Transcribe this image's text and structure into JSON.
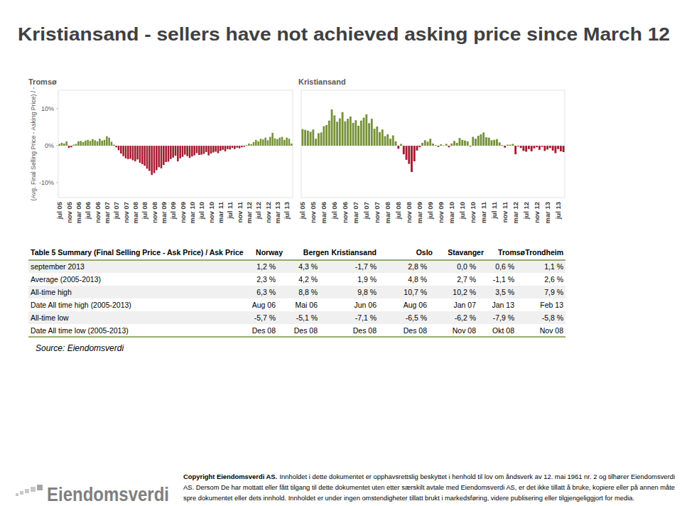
{
  "title": "Kristiansand - sellers have not achieved asking price since March 12",
  "chart_data": [
    {
      "type": "bar",
      "title": "Tromsø",
      "ylabel": "(Avg. Final Selling Price - Asking Price) / -",
      "categories": [
        "jul 05",
        null,
        null,
        null,
        "nov 05",
        null,
        null,
        null,
        "mar 06",
        null,
        null,
        null,
        "jul 06",
        null,
        null,
        null,
        "nov 06",
        null,
        null,
        null,
        "mar 07",
        null,
        null,
        null,
        "jul 07",
        null,
        null,
        null,
        "nov 07",
        null,
        null,
        null,
        "mar 08",
        null,
        null,
        null,
        "jul 08",
        null,
        null,
        null,
        "nov 08",
        null,
        null,
        null,
        "mar 09",
        null,
        null,
        null,
        "jul 09",
        null,
        null,
        null,
        "nov 09",
        null,
        null,
        null,
        "mar 10",
        null,
        null,
        null,
        "jul 10",
        null,
        null,
        null,
        "nov 10",
        null,
        null,
        null,
        "mar 11",
        null,
        null,
        null,
        "jul 11",
        null,
        null,
        null,
        "nov 11",
        null,
        null,
        null,
        "mar 12",
        null,
        null,
        null,
        "jul 12",
        null,
        null,
        null,
        "nov 12",
        null,
        null,
        null,
        "mar 13",
        null,
        null,
        null,
        "jul 13",
        null,
        null
      ],
      "values": [
        0.5,
        0.8,
        0.6,
        1.2,
        -0.6,
        -0.4,
        0.3,
        0.5,
        1.2,
        1.3,
        1.0,
        1.4,
        1.6,
        1.3,
        1.8,
        1.5,
        1.2,
        1.9,
        1.4,
        1.6,
        2.6,
        2.2,
        1.1,
        0.3,
        -0.4,
        -1.2,
        -2.1,
        -2.8,
        -3.4,
        -3.6,
        -3.5,
        -3.9,
        -4.2,
        -3.7,
        -4.6,
        -5.0,
        -5.4,
        -6.2,
        -6.8,
        -7.9,
        -7.4,
        -6.6,
        -5.8,
        -6.1,
        -5.2,
        -4.4,
        -4.3,
        -3.6,
        -3.2,
        -2.7,
        -4.2,
        -3.4,
        -3.0,
        -2.4,
        -2.8,
        -3.3,
        -2.9,
        -2.6,
        -2.0,
        -2.5,
        -2.4,
        -2.2,
        -1.7,
        -2.6,
        -2.1,
        -1.8,
        -1.6,
        -2.0,
        -1.4,
        -1.1,
        -1.5,
        -0.9,
        -1.0,
        -0.6,
        -0.9,
        -0.5,
        -0.7,
        -0.4,
        -0.3,
        0.2,
        0.6,
        0.4,
        1.0,
        1.6,
        1.2,
        1.9,
        1.7,
        2.2,
        1.5,
        2.4,
        3.5,
        2.0,
        1.8,
        2.2,
        2.4,
        1.6,
        2.2,
        1.9,
        0.6
      ],
      "colors": [
        "#76923c",
        "#76923c",
        "#76923c",
        "#76923c",
        "#a6192e",
        "#a6192e",
        "#76923c",
        "#76923c",
        "#76923c",
        "#76923c",
        "#76923c",
        "#76923c",
        "#76923c",
        "#76923c",
        "#76923c",
        "#76923c",
        "#76923c",
        "#76923c",
        "#76923c",
        "#76923c",
        "#76923c",
        "#76923c",
        "#76923c",
        "#76923c",
        "#a6192e",
        "#a6192e",
        "#a6192e",
        "#a6192e",
        "#a6192e",
        "#a6192e",
        "#a6192e",
        "#a6192e",
        "#a6192e",
        "#a6192e",
        "#a6192e",
        "#a6192e",
        "#a6192e",
        "#a6192e",
        "#a6192e",
        "#a6192e",
        "#a6192e",
        "#a6192e",
        "#a6192e",
        "#a6192e",
        "#a6192e",
        "#a6192e",
        "#a6192e",
        "#a6192e",
        "#a6192e",
        "#a6192e",
        "#a6192e",
        "#a6192e",
        "#a6192e",
        "#a6192e",
        "#a6192e",
        "#a6192e",
        "#a6192e",
        "#a6192e",
        "#a6192e",
        "#a6192e",
        "#a6192e",
        "#a6192e",
        "#a6192e",
        "#a6192e",
        "#a6192e",
        "#a6192e",
        "#a6192e",
        "#a6192e",
        "#a6192e",
        "#a6192e",
        "#a6192e",
        "#a6192e",
        "#a6192e",
        "#a6192e",
        "#a6192e",
        "#a6192e",
        "#a6192e",
        "#a6192e",
        "#a6192e",
        "#76923c",
        "#76923c",
        "#76923c",
        "#76923c",
        "#76923c",
        "#76923c",
        "#76923c",
        "#76923c",
        "#76923c",
        "#76923c",
        "#76923c",
        "#76923c",
        "#76923c",
        "#76923c",
        "#76923c",
        "#76923c",
        "#76923c",
        "#76923c",
        "#76923c",
        "#76923c"
      ],
      "ylim": [
        -14,
        15
      ],
      "yticks": [
        {
          "value": -10,
          "label": "-10%"
        },
        {
          "value": 0,
          "label": "0%"
        },
        {
          "value": 10,
          "label": "10%"
        }
      ]
    },
    {
      "type": "bar",
      "title": "Kristiansand",
      "categories": [
        "jul 05",
        null,
        null,
        null,
        "nov 05",
        null,
        null,
        null,
        "mar 06",
        null,
        null,
        null,
        "jul 06",
        null,
        null,
        null,
        "nov 06",
        null,
        null,
        null,
        "mar 07",
        null,
        null,
        null,
        "jul 07",
        null,
        null,
        null,
        "nov 07",
        null,
        null,
        null,
        "mar 08",
        null,
        null,
        null,
        "jul 08",
        null,
        null,
        null,
        "nov 08",
        null,
        null,
        null,
        "mar 09",
        null,
        null,
        null,
        "jul 09",
        null,
        null,
        null,
        "nov 09",
        null,
        null,
        null,
        "mar 10",
        null,
        null,
        null,
        "jul 10",
        null,
        null,
        null,
        "nov 10",
        null,
        null,
        null,
        "mar 11",
        null,
        null,
        null,
        "jul 11",
        null,
        null,
        null,
        "nov 11",
        null,
        null,
        null,
        "mar 12",
        null,
        null,
        null,
        "jul 12",
        null,
        null,
        null,
        "nov 12",
        null,
        null,
        null,
        "mar 13",
        null,
        null,
        null,
        "jul 13",
        null,
        null
      ],
      "values": [
        4.5,
        4.3,
        4.1,
        3.8,
        4.4,
        1.9,
        3.4,
        3.6,
        5.3,
        5.6,
        6.8,
        9.8,
        8.2,
        6.5,
        7.4,
        9.1,
        6.6,
        7.3,
        7.9,
        6.2,
        6.9,
        5.4,
        6.8,
        7.6,
        8.5,
        6.1,
        7.3,
        4.6,
        5.2,
        3.7,
        4.4,
        2.6,
        3.1,
        1.9,
        2.8,
        1.2,
        -0.8,
        0.5,
        -2.3,
        -3.8,
        -4.9,
        -7.1,
        -4.2,
        -1.3,
        -0.4,
        0.8,
        1.5,
        1.1,
        1.9,
        0.6,
        0.2,
        -0.3,
        0.4,
        0.1,
        0.5,
        -0.4,
        0.6,
        1.3,
        0.8,
        2.1,
        1.6,
        1.4,
        1.2,
        -0.2,
        2.4,
        1.9,
        2.7,
        3.1,
        3.6,
        2.3,
        2.2,
        1.5,
        1.6,
        1.8,
        0.9,
        0.2,
        -0.5,
        0.3,
        0.3,
        0.5,
        -2.3,
        -0.2,
        -0.6,
        -1.4,
        -1.6,
        -0.9,
        -1.5,
        -0.7,
        -0.4,
        -1.1,
        -0.3,
        -1.4,
        -1.0,
        -0.6,
        -1.3,
        -2.0,
        -0.9,
        -1.5,
        -1.7
      ],
      "colors": [
        "#76923c",
        "#76923c",
        "#76923c",
        "#76923c",
        "#76923c",
        "#76923c",
        "#76923c",
        "#76923c",
        "#76923c",
        "#76923c",
        "#76923c",
        "#76923c",
        "#76923c",
        "#76923c",
        "#76923c",
        "#76923c",
        "#76923c",
        "#76923c",
        "#76923c",
        "#76923c",
        "#76923c",
        "#76923c",
        "#76923c",
        "#76923c",
        "#76923c",
        "#76923c",
        "#76923c",
        "#76923c",
        "#76923c",
        "#76923c",
        "#76923c",
        "#76923c",
        "#76923c",
        "#76923c",
        "#76923c",
        "#76923c",
        "#a6192e",
        "#76923c",
        "#a6192e",
        "#a6192e",
        "#a6192e",
        "#a6192e",
        "#a6192e",
        "#a6192e",
        "#a6192e",
        "#76923c",
        "#76923c",
        "#76923c",
        "#76923c",
        "#76923c",
        "#76923c",
        "#a6192e",
        "#76923c",
        "#76923c",
        "#76923c",
        "#a6192e",
        "#76923c",
        "#76923c",
        "#76923c",
        "#76923c",
        "#76923c",
        "#76923c",
        "#76923c",
        "#a6192e",
        "#76923c",
        "#76923c",
        "#76923c",
        "#76923c",
        "#76923c",
        "#76923c",
        "#76923c",
        "#76923c",
        "#76923c",
        "#76923c",
        "#76923c",
        "#76923c",
        "#a6192e",
        "#76923c",
        "#76923c",
        "#76923c",
        "#a6192e",
        "#a6192e",
        "#a6192e",
        "#a6192e",
        "#a6192e",
        "#a6192e",
        "#a6192e",
        "#a6192e",
        "#a6192e",
        "#a6192e",
        "#a6192e",
        "#a6192e",
        "#a6192e",
        "#a6192e",
        "#a6192e",
        "#a6192e",
        "#a6192e",
        "#a6192e",
        "#a6192e"
      ],
      "ylim": [
        -14,
        15
      ],
      "tick_labels": "x"
    }
  ],
  "table": {
    "title": "Table 5 Summary (Final Selling Price - Ask Price) / Ask Price",
    "columns": [
      "Norway",
      "Bergen",
      "Kristiansand",
      "Oslo",
      "Stavanger",
      "Tromsø",
      "Trondheim"
    ],
    "rows": [
      {
        "label": "september 2013",
        "cells": [
          "1,2 %",
          "4,3 %",
          "-1,7 %",
          "2,8 %",
          "0,0 %",
          "0,6 %",
          "1,1 %"
        ]
      },
      {
        "label": "Average (2005-2013)",
        "cells": [
          "2,3 %",
          "4,2 %",
          "1,9 %",
          "4,8 %",
          "2,7 %",
          "-1,1 %",
          "2,6 %"
        ]
      },
      {
        "label": "All-time high",
        "cells": [
          "6,3 %",
          "8,8 %",
          "9,8 %",
          "10,7 %",
          "10,2 %",
          "3,5 %",
          "7,9 %"
        ]
      },
      {
        "label": "Date All time high (2005-2013)",
        "cells": [
          "Aug 06",
          "Mai 06",
          "Jun 06",
          "Aug 06",
          "Jan 07",
          "Jan 13",
          "Feb 13"
        ]
      },
      {
        "label": "All-time low",
        "cells": [
          "-5,7 %",
          "-5,1 %",
          "-7,1 %",
          "-6,5 %",
          "-6,2 %",
          "-7,9 %",
          "-5,8 %"
        ]
      },
      {
        "label": "Date All time low (2005-2013)",
        "cells": [
          "Des 08",
          "Des 08",
          "Des 08",
          "Des 08",
          "Nov 08",
          "Okt 08",
          "Nov 08"
        ]
      }
    ]
  },
  "source": "Source: Eiendomsverdi",
  "footer": {
    "logo": "Eiendomsverdi",
    "copyright_lead": "Copyright Eiendomsverdi AS.",
    "copyright": [
      "Innholdet i dette dokumentet er opphavsrettslig beskyttet i henhold til lov om åndsverk av 12. mai 1961 nr. 2 og tilhører Eiendomsverdi",
      "AS. Dersom De har mottatt eller fått tilgang til dette dokumentet uten etter særskilt avtale med Eiendomsverdi AS, er det ikke tillatt å bruke, kopiere eller på annen måte",
      "spre dokumentet eller dets innhold. Innholdet er under ingen omstendigheter tillatt brukt i markedsføring, videre publisering eller tilgjengeliggjort for media."
    ]
  }
}
